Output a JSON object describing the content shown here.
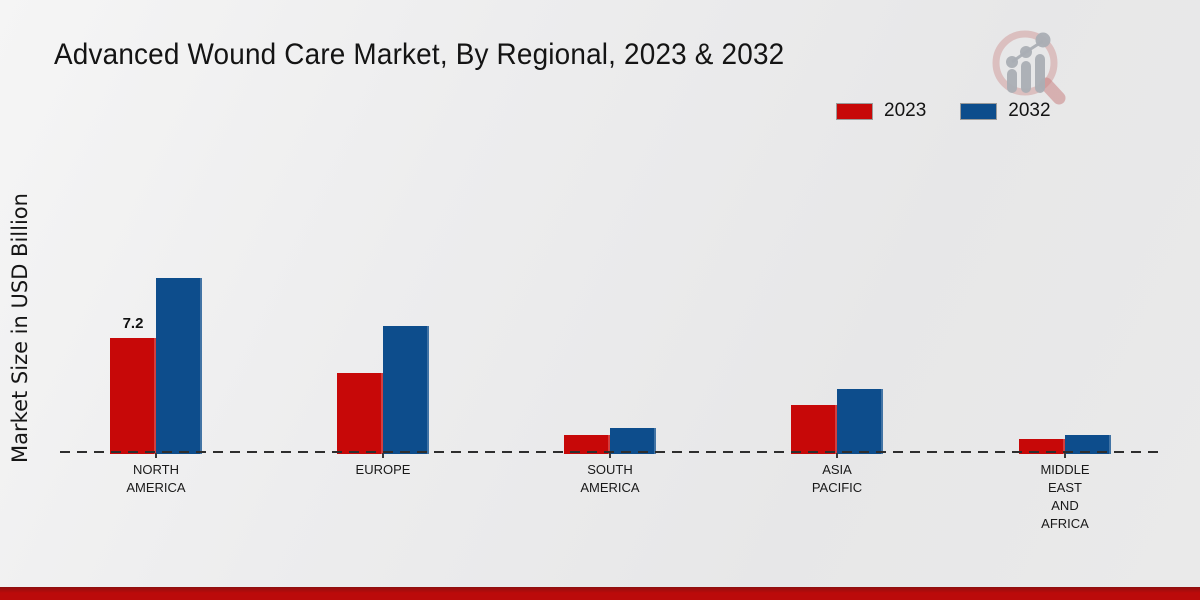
{
  "title": "Advanced Wound Care Market, By Regional, 2023 & 2032",
  "colors": {
    "series_2023": "#c70808",
    "series_2032": "#0d4d8c",
    "baseline": "#2e2e2e",
    "bottom_band_top": "#8e1010",
    "bottom_band": "#bb0a0a",
    "background": "#ebebeb",
    "text": "#141414",
    "logo_ring": "#d4a9a9",
    "logo_bars": "#b6bac0"
  },
  "chart_data": {
    "type": "bar",
    "title": "Advanced Wound Care Market, By Regional, 2023 & 2032",
    "ylabel": "Market Size in USD Billion",
    "unit": "USD Billion",
    "categories": [
      "NORTH AMERICA",
      "EUROPE",
      "SOUTH AMERICA",
      "ASIA PACIFIC",
      "MIDDLE EAST AND AFRICA"
    ],
    "category_label_lines": [
      "NORTH\nAMERICA",
      "EUROPE",
      "SOUTH\nAMERICA",
      "ASIA\nPACIFIC",
      "MIDDLE\nEAST\nAND\nAFRICA"
    ],
    "series": [
      {
        "name": "2023",
        "color": "#c70808",
        "values": [
          7.2,
          5.0,
          1.1,
          3.0,
          0.8
        ]
      },
      {
        "name": "2032",
        "color": "#0d4d8c",
        "values": [
          11.0,
          8.0,
          1.5,
          4.0,
          1.1
        ]
      }
    ],
    "data_labels": [
      {
        "category": "NORTH AMERICA",
        "series": "2023",
        "text": "7.2"
      }
    ],
    "ylim": [
      0,
      12
    ],
    "grid": false,
    "legend_position": "top-right",
    "x_axis_style": "dashed-baseline"
  }
}
